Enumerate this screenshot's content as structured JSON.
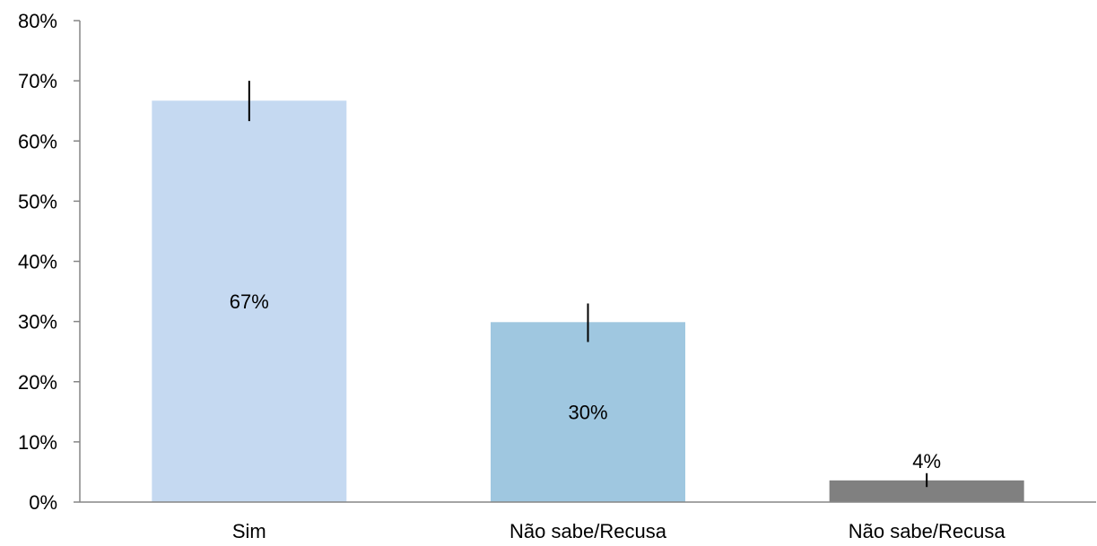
{
  "chart_data": {
    "type": "bar",
    "title": "",
    "xlabel": "",
    "ylabel": "",
    "categories": [
      "Sim",
      "Não sabe/Recusa",
      "Não sabe/Recusa"
    ],
    "values": [
      66.7,
      29.9,
      3.6
    ],
    "value_labels": [
      "67%",
      "30%",
      "4%"
    ],
    "error_bars": [
      {
        "low": 63.3,
        "high": 70.0
      },
      {
        "low": 26.6,
        "high": 33.0
      },
      {
        "low": 2.5,
        "high": 4.8
      }
    ],
    "bar_colors": [
      "#c5d9f1",
      "#9fc7e0",
      "#808080"
    ],
    "ylim": [
      0,
      80
    ],
    "yticks": [
      0,
      10,
      20,
      30,
      40,
      50,
      60,
      70,
      80
    ],
    "ytick_labels": [
      "0%",
      "10%",
      "20%",
      "30%",
      "40%",
      "50%",
      "60%",
      "70%",
      "80%"
    ],
    "grid": false,
    "legend": "none"
  }
}
